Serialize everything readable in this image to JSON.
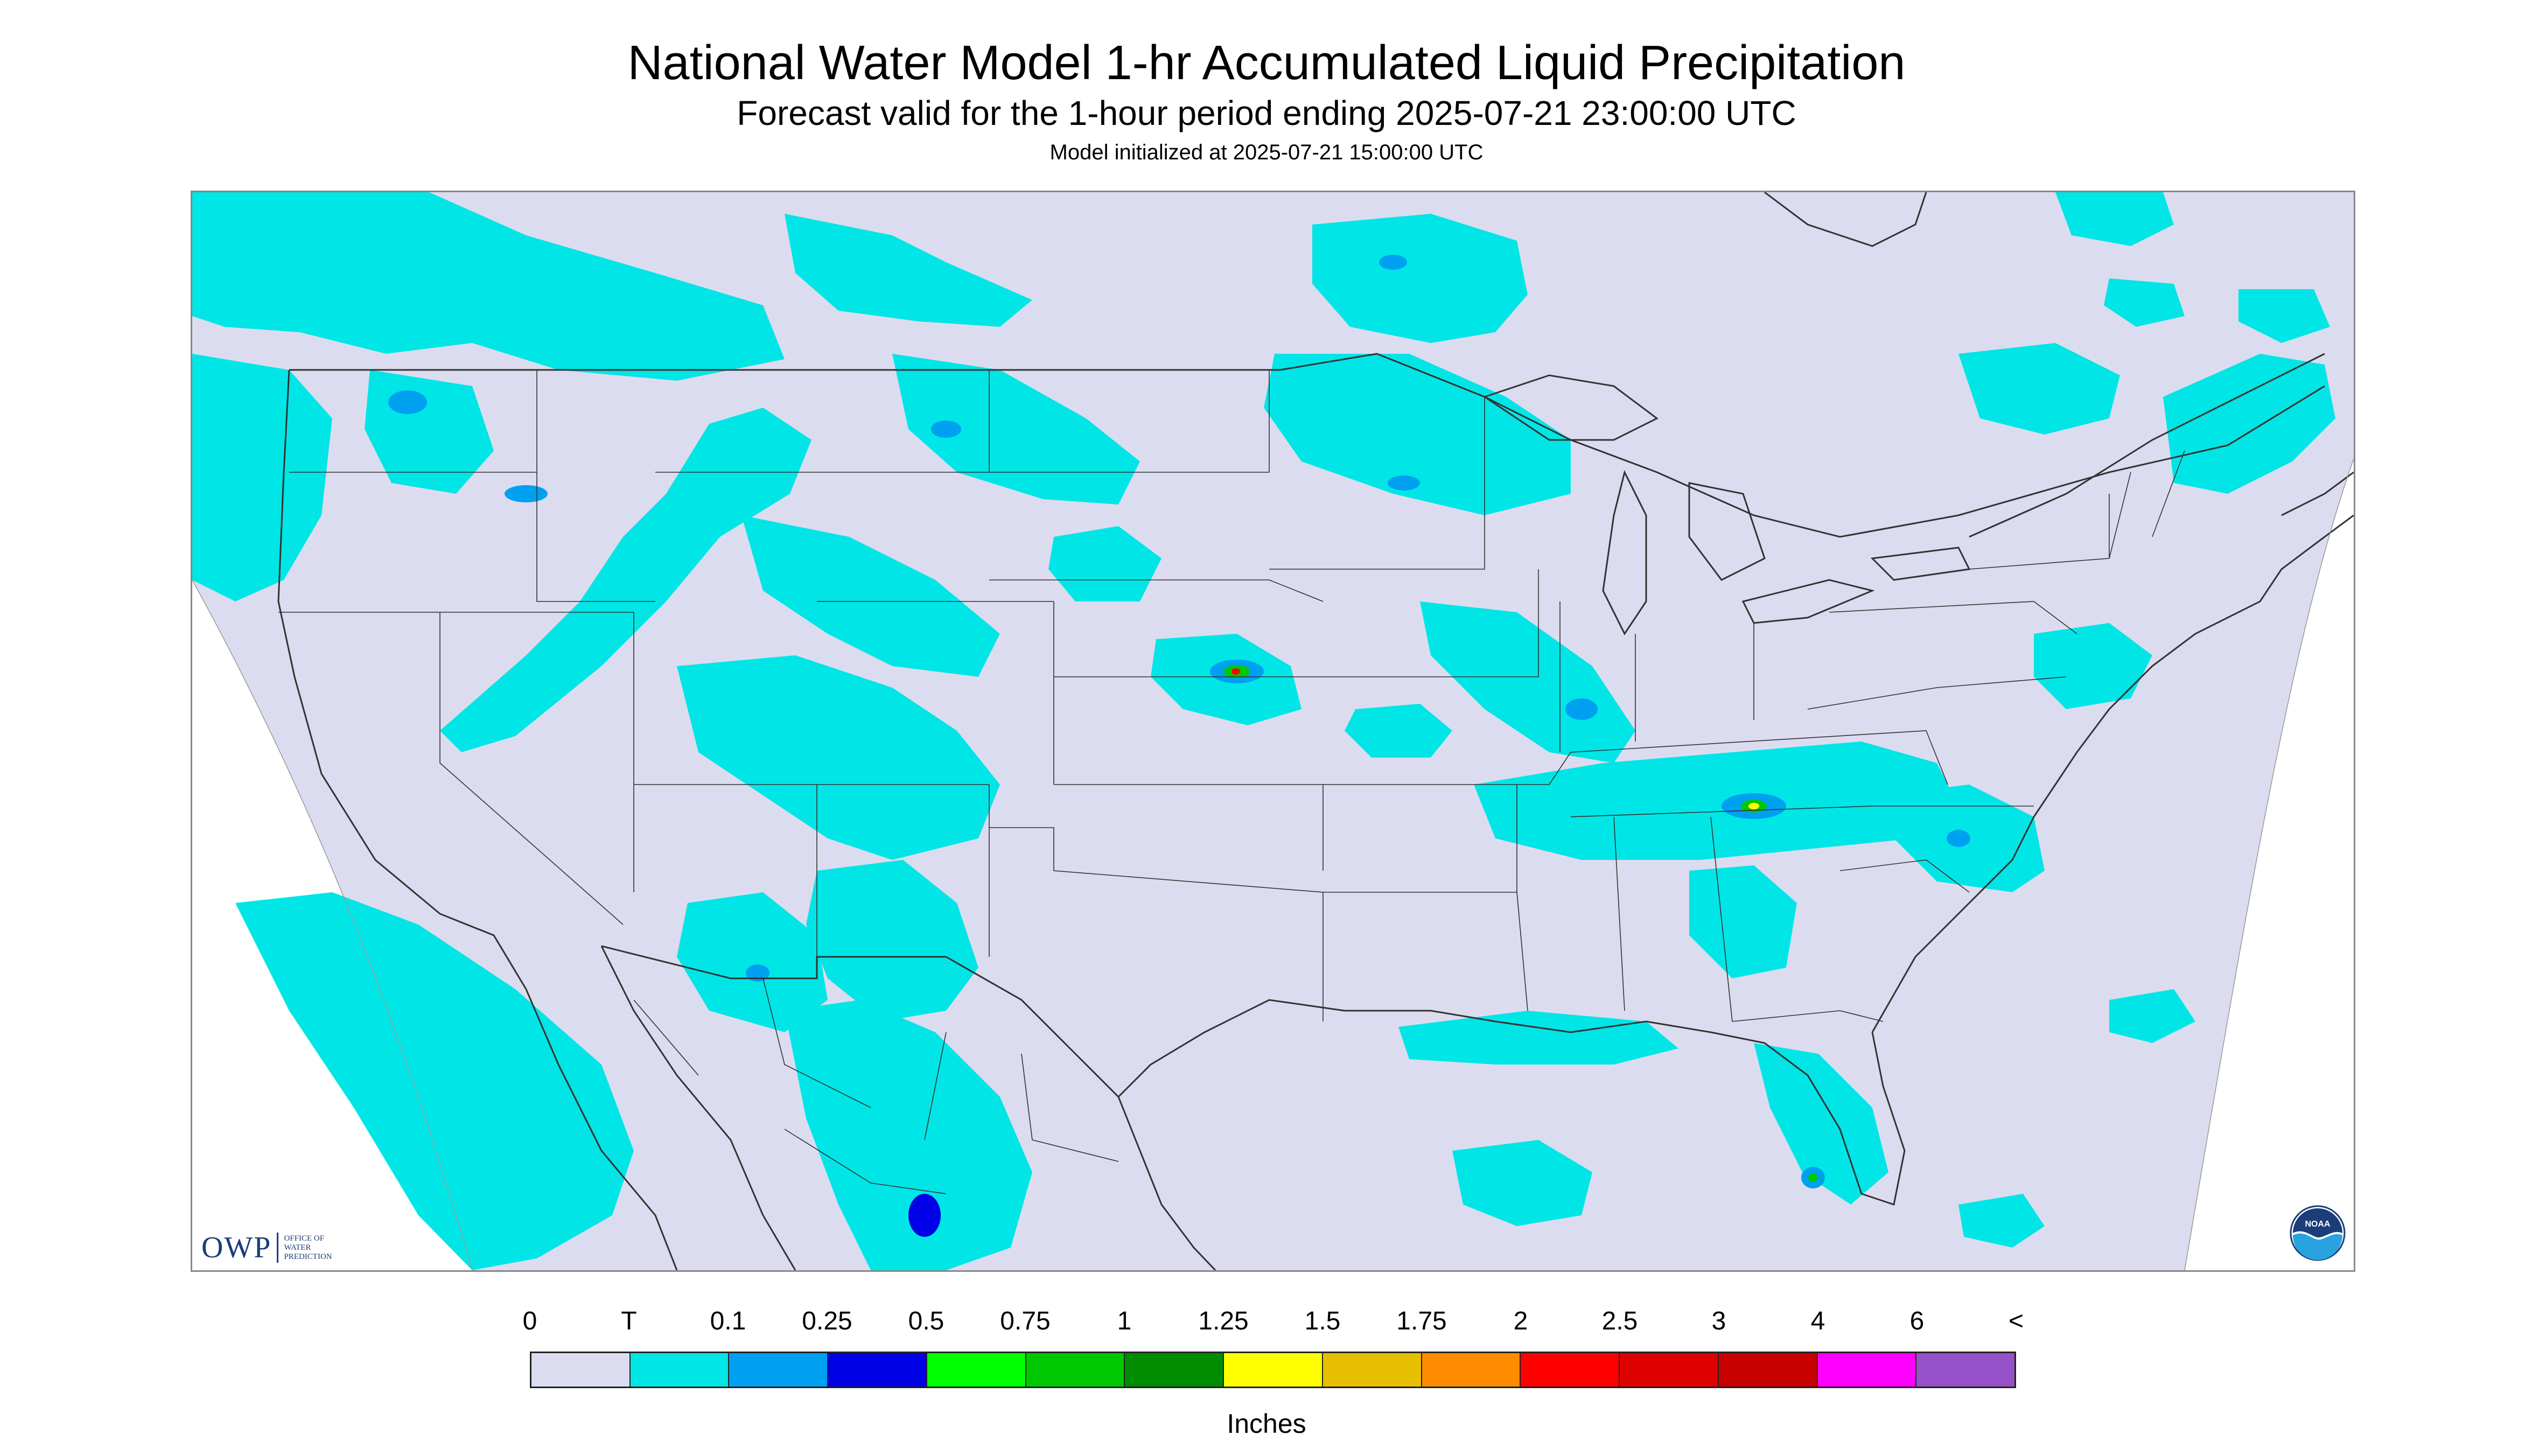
{
  "title": "National Water Model 1-hr Accumulated Liquid Precipitation",
  "subtitle": "Forecast valid for the 1-hour period ending 2025-07-21 23:00:00 UTC",
  "initialized": "Model initialized at 2025-07-21 15:00:00 UTC",
  "map": {
    "region": "CONUS",
    "background_color": "#dcdcf0",
    "outside_color": "#ffffff",
    "boundary_color": "#333333"
  },
  "logos": {
    "owp_text": "OWP",
    "owp_small": [
      "OFFICE OF",
      "WATER",
      "PREDICTION"
    ],
    "noaa_text": "NOAA"
  },
  "legend": {
    "labels": [
      "0",
      "T",
      "0.1",
      "0.25",
      "0.5",
      "0.75",
      "1",
      "1.25",
      "1.5",
      "1.75",
      "2",
      "2.5",
      "3",
      "4",
      "6",
      "<"
    ],
    "colors": [
      "#dcdcf0",
      "#00e6e6",
      "#00a0f0",
      "#0000e6",
      "#00ff00",
      "#00c800",
      "#008c00",
      "#ffff00",
      "#e6c000",
      "#ff8c00",
      "#ff0000",
      "#dc0000",
      "#c80000",
      "#ff00ff",
      "#9650c8"
    ],
    "units": "Inches"
  }
}
